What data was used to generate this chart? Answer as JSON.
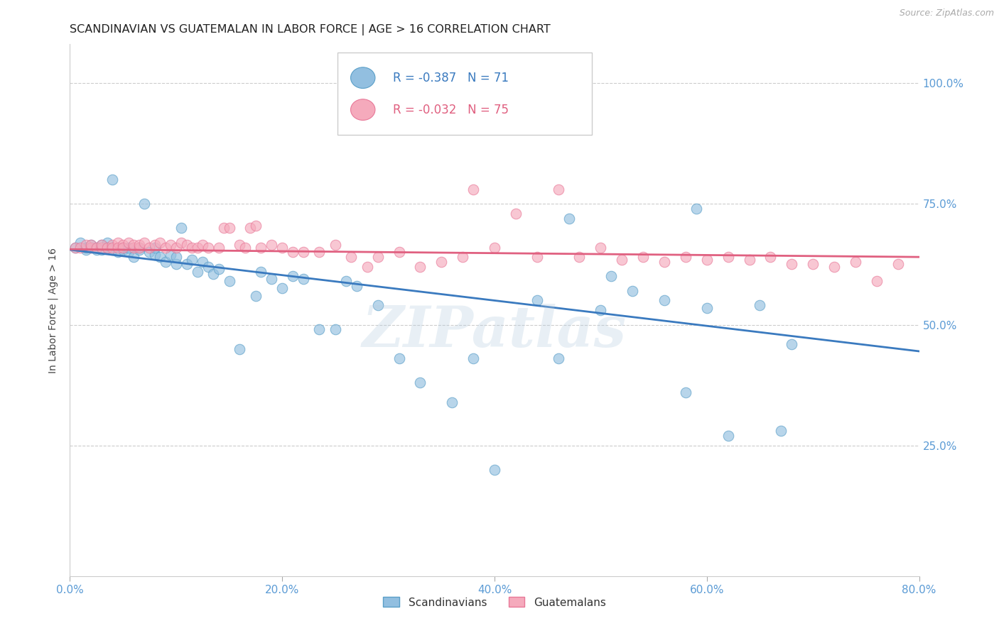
{
  "title": "SCANDINAVIAN VS GUATEMALAN IN LABOR FORCE | AGE > 16 CORRELATION CHART",
  "source": "Source: ZipAtlas.com",
  "ylabel": "In Labor Force | Age > 16",
  "xlim": [
    0.0,
    0.8
  ],
  "ylim": [
    -0.02,
    1.08
  ],
  "yticks": [
    0.25,
    0.5,
    0.75,
    1.0
  ],
  "ytick_labels": [
    "25.0%",
    "50.0%",
    "75.0%",
    "100.0%"
  ],
  "xticks": [
    0.0,
    0.2,
    0.4,
    0.6,
    0.8
  ],
  "xtick_labels": [
    "0.0%",
    "20.0%",
    "40.0%",
    "60.0%",
    "80.0%"
  ],
  "scandinavian_color": "#92bfe0",
  "guatemalan_color": "#f5aabc",
  "scandinavian_edge_color": "#5a9fc8",
  "guatemalan_edge_color": "#e87898",
  "scandinavian_line_color": "#3a7abf",
  "guatemalan_line_color": "#e06080",
  "R_scan": -0.387,
  "N_scan": 71,
  "R_guat": -0.032,
  "N_guat": 75,
  "scan_trendline_y_start": 0.655,
  "scan_trendline_y_end": 0.445,
  "guat_trendline_y_start": 0.656,
  "guat_trendline_y_end": 0.64,
  "scandinavian_x": [
    0.005,
    0.01,
    0.015,
    0.015,
    0.02,
    0.02,
    0.025,
    0.025,
    0.03,
    0.03,
    0.035,
    0.035,
    0.04,
    0.04,
    0.045,
    0.05,
    0.05,
    0.055,
    0.055,
    0.06,
    0.065,
    0.065,
    0.07,
    0.075,
    0.08,
    0.08,
    0.085,
    0.09,
    0.095,
    0.1,
    0.1,
    0.105,
    0.11,
    0.115,
    0.12,
    0.125,
    0.13,
    0.135,
    0.14,
    0.15,
    0.16,
    0.175,
    0.18,
    0.19,
    0.2,
    0.21,
    0.22,
    0.235,
    0.25,
    0.26,
    0.27,
    0.29,
    0.31,
    0.33,
    0.36,
    0.38,
    0.4,
    0.44,
    0.46,
    0.47,
    0.5,
    0.51,
    0.53,
    0.56,
    0.58,
    0.59,
    0.6,
    0.62,
    0.65,
    0.67,
    0.68
  ],
  "scandinavian_y": [
    0.66,
    0.67,
    0.655,
    0.66,
    0.66,
    0.665,
    0.66,
    0.655,
    0.665,
    0.655,
    0.67,
    0.66,
    0.8,
    0.655,
    0.65,
    0.66,
    0.655,
    0.65,
    0.66,
    0.64,
    0.66,
    0.655,
    0.75,
    0.65,
    0.645,
    0.66,
    0.64,
    0.63,
    0.645,
    0.625,
    0.64,
    0.7,
    0.625,
    0.635,
    0.61,
    0.63,
    0.62,
    0.605,
    0.615,
    0.59,
    0.45,
    0.56,
    0.61,
    0.595,
    0.575,
    0.6,
    0.595,
    0.49,
    0.49,
    0.59,
    0.58,
    0.54,
    0.43,
    0.38,
    0.34,
    0.43,
    0.2,
    0.55,
    0.43,
    0.72,
    0.53,
    0.6,
    0.57,
    0.55,
    0.36,
    0.74,
    0.535,
    0.27,
    0.54,
    0.28,
    0.46
  ],
  "guatemalan_x": [
    0.005,
    0.01,
    0.015,
    0.02,
    0.02,
    0.025,
    0.03,
    0.03,
    0.035,
    0.04,
    0.04,
    0.045,
    0.045,
    0.05,
    0.05,
    0.055,
    0.06,
    0.06,
    0.065,
    0.065,
    0.07,
    0.075,
    0.08,
    0.085,
    0.09,
    0.095,
    0.1,
    0.105,
    0.11,
    0.115,
    0.12,
    0.125,
    0.13,
    0.14,
    0.145,
    0.15,
    0.16,
    0.165,
    0.17,
    0.175,
    0.18,
    0.19,
    0.2,
    0.21,
    0.22,
    0.235,
    0.25,
    0.265,
    0.28,
    0.29,
    0.31,
    0.33,
    0.35,
    0.37,
    0.38,
    0.4,
    0.42,
    0.44,
    0.46,
    0.48,
    0.5,
    0.52,
    0.54,
    0.56,
    0.58,
    0.6,
    0.62,
    0.64,
    0.66,
    0.68,
    0.7,
    0.72,
    0.74,
    0.76,
    0.78
  ],
  "guatemalan_y": [
    0.66,
    0.66,
    0.665,
    0.66,
    0.665,
    0.66,
    0.66,
    0.665,
    0.66,
    0.665,
    0.66,
    0.67,
    0.66,
    0.665,
    0.66,
    0.67,
    0.66,
    0.665,
    0.66,
    0.665,
    0.67,
    0.66,
    0.665,
    0.67,
    0.66,
    0.665,
    0.66,
    0.67,
    0.665,
    0.66,
    0.66,
    0.665,
    0.66,
    0.66,
    0.7,
    0.7,
    0.665,
    0.66,
    0.7,
    0.705,
    0.66,
    0.665,
    0.66,
    0.65,
    0.65,
    0.65,
    0.665,
    0.64,
    0.62,
    0.64,
    0.65,
    0.62,
    0.63,
    0.64,
    0.78,
    0.66,
    0.73,
    0.64,
    0.78,
    0.64,
    0.66,
    0.635,
    0.64,
    0.63,
    0.64,
    0.635,
    0.64,
    0.635,
    0.64,
    0.625,
    0.625,
    0.62,
    0.63,
    0.59,
    0.625
  ],
  "watermark": "ZIPatlas",
  "bg_color": "#ffffff",
  "grid_color": "#cccccc",
  "axis_tick_color": "#5b9bd5",
  "title_color": "#222222",
  "ylabel_color": "#444444",
  "source_color": "#aaaaaa"
}
